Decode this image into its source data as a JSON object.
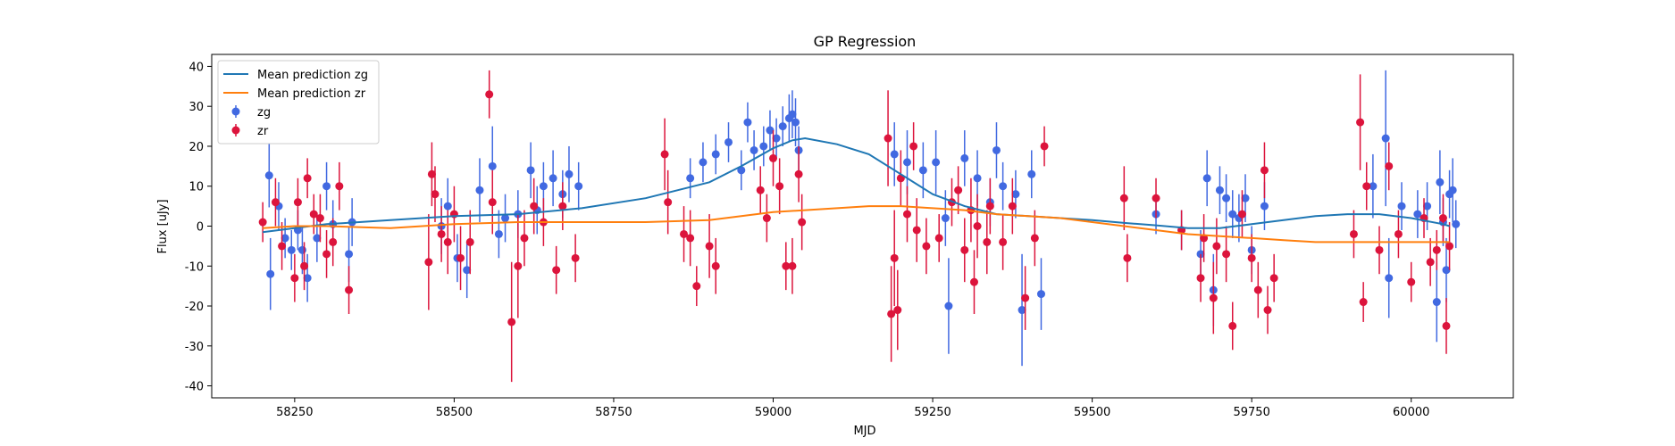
{
  "chart_data": {
    "type": "scatter",
    "title": "GP Regression",
    "xlabel": "MJD",
    "ylabel": "Flux [uJy]",
    "xlim": [
      58120,
      60160
    ],
    "ylim": [
      -43,
      43
    ],
    "xticks": [
      58250,
      58500,
      58750,
      59000,
      59250,
      59500,
      59750,
      60000
    ],
    "yticks": [
      -40,
      -30,
      -20,
      -10,
      0,
      10,
      20,
      30,
      40
    ],
    "grid": false,
    "legend_position": "top-left",
    "colors": {
      "zg_points": "#4169e1",
      "zr_points": "#dc143c",
      "zg_line": "#1f77b4",
      "zr_line": "#ff7f0e"
    },
    "legend": [
      {
        "label": "Mean prediction zg",
        "kind": "line",
        "color": "#1f77b4"
      },
      {
        "label": "Mean prediction zr",
        "kind": "line",
        "color": "#ff7f0e"
      },
      {
        "label": "zg",
        "kind": "errorbar",
        "color": "#4169e1"
      },
      {
        "label": "zr",
        "kind": "errorbar",
        "color": "#dc143c"
      }
    ],
    "lines": [
      {
        "name": "Mean prediction zg",
        "color": "#1f77b4",
        "x": [
          58200,
          58250,
          58300,
          58400,
          58500,
          58600,
          58700,
          58800,
          58900,
          58950,
          59000,
          59030,
          59050,
          59100,
          59150,
          59200,
          59250,
          59300,
          59350,
          59400,
          59450,
          59500,
          59550,
          59600,
          59650,
          59700,
          59750,
          59800,
          59850,
          59900,
          59950,
          60000,
          60050,
          60060
        ],
        "y": [
          -1.5,
          -0.5,
          0.5,
          1.5,
          2.5,
          3,
          4.5,
          7,
          11,
          15,
          19.5,
          21.5,
          22,
          20.5,
          18,
          13,
          8,
          5,
          3,
          2.5,
          2,
          1.5,
          0.8,
          0.2,
          -0.5,
          -0.5,
          0.5,
          1.5,
          2.5,
          3,
          3,
          2,
          0.5,
          0
        ]
      },
      {
        "name": "Mean prediction zr",
        "color": "#ff7f0e",
        "x": [
          58200,
          58250,
          58300,
          58400,
          58500,
          58600,
          58700,
          58800,
          58900,
          58950,
          59000,
          59050,
          59100,
          59150,
          59200,
          59250,
          59300,
          59350,
          59400,
          59450,
          59500,
          59550,
          59600,
          59650,
          59700,
          59750,
          59800,
          59850,
          59900,
          59950,
          60000,
          60050,
          60060
        ],
        "y": [
          -0.5,
          0,
          0,
          -0.5,
          0.5,
          1,
          1,
          1,
          1.5,
          2.5,
          3.5,
          4,
          4.5,
          5,
          5,
          4.5,
          4,
          3,
          2.5,
          2,
          1,
          0,
          -1,
          -2,
          -2.5,
          -3,
          -3.5,
          -4,
          -4,
          -4,
          -4,
          -4,
          -4
        ]
      }
    ],
    "series": [
      {
        "name": "zg",
        "color": "#4169e1",
        "points": [
          [
            58210,
            12.7,
            8
          ],
          [
            58212,
            -12,
            9
          ],
          [
            58225,
            5,
            6
          ],
          [
            58235,
            -3,
            5
          ],
          [
            58245,
            -6,
            5
          ],
          [
            58255,
            -1,
            5
          ],
          [
            58262,
            -6,
            6
          ],
          [
            58270,
            -13,
            6
          ],
          [
            58285,
            -3,
            6
          ],
          [
            58300,
            10,
            6
          ],
          [
            58310,
            0.5,
            6
          ],
          [
            58335,
            -7,
            7
          ],
          [
            58340,
            1,
            6
          ],
          [
            58480,
            0,
            7
          ],
          [
            58490,
            5,
            7
          ],
          [
            58505,
            -8,
            6
          ],
          [
            58520,
            -11,
            7
          ],
          [
            58540,
            9,
            8
          ],
          [
            58560,
            15,
            10
          ],
          [
            58570,
            -2,
            6
          ],
          [
            58580,
            2,
            6
          ],
          [
            58600,
            3,
            6
          ],
          [
            58620,
            14,
            7
          ],
          [
            58630,
            4,
            6
          ],
          [
            58640,
            10,
            6
          ],
          [
            58655,
            12,
            7
          ],
          [
            58670,
            8,
            6
          ],
          [
            58680,
            13,
            7
          ],
          [
            58695,
            10,
            6
          ],
          [
            58870,
            12,
            5
          ],
          [
            58890,
            16,
            5
          ],
          [
            58910,
            18,
            5
          ],
          [
            58930,
            21,
            5
          ],
          [
            58950,
            14,
            5
          ],
          [
            58960,
            26,
            5
          ],
          [
            58970,
            19,
            5
          ],
          [
            58985,
            20,
            5
          ],
          [
            58995,
            24,
            5
          ],
          [
            59005,
            22,
            5
          ],
          [
            59015,
            25,
            5
          ],
          [
            59025,
            27,
            6
          ],
          [
            59030,
            28,
            6
          ],
          [
            59035,
            26,
            6
          ],
          [
            59040,
            19,
            6
          ],
          [
            59190,
            18,
            8
          ],
          [
            59210,
            16,
            8
          ],
          [
            59235,
            14,
            7
          ],
          [
            59255,
            16,
            8
          ],
          [
            59270,
            2,
            7
          ],
          [
            59275,
            -20,
            12
          ],
          [
            59300,
            17,
            7
          ],
          [
            59320,
            12,
            7
          ],
          [
            59340,
            6,
            6
          ],
          [
            59350,
            19,
            7
          ],
          [
            59360,
            10,
            6
          ],
          [
            59380,
            8,
            6
          ],
          [
            59390,
            -21,
            14
          ],
          [
            59405,
            13,
            6
          ],
          [
            59420,
            -17,
            9
          ],
          [
            59600,
            3,
            5
          ],
          [
            59640,
            -1,
            5
          ],
          [
            59670,
            -7,
            6
          ],
          [
            59680,
            12,
            7
          ],
          [
            59690,
            -16,
            9
          ],
          [
            59700,
            9,
            6
          ],
          [
            59710,
            7,
            6
          ],
          [
            59720,
            3,
            6
          ],
          [
            59730,
            2,
            6
          ],
          [
            59740,
            7,
            6
          ],
          [
            59750,
            -6,
            6
          ],
          [
            59770,
            5,
            6
          ],
          [
            59940,
            10,
            8
          ],
          [
            59960,
            22,
            17
          ],
          [
            59965,
            -13,
            10
          ],
          [
            59985,
            5,
            6
          ],
          [
            60010,
            3,
            6
          ],
          [
            60025,
            5,
            6
          ],
          [
            60045,
            11,
            8
          ],
          [
            60050,
            1,
            6
          ],
          [
            60055,
            -11,
            8
          ],
          [
            60060,
            8,
            6
          ],
          [
            60065,
            9,
            8
          ],
          [
            60070,
            0.5,
            6
          ],
          [
            60040,
            -19,
            10
          ]
        ]
      },
      {
        "name": "zr",
        "color": "#dc143c",
        "points": [
          [
            58200,
            1,
            5
          ],
          [
            58220,
            6,
            6
          ],
          [
            58230,
            -5,
            6
          ],
          [
            58250,
            -13,
            6
          ],
          [
            58255,
            6,
            6
          ],
          [
            58265,
            -10,
            6
          ],
          [
            58270,
            12,
            5
          ],
          [
            58280,
            3,
            5
          ],
          [
            58290,
            2,
            6
          ],
          [
            58300,
            -7,
            6
          ],
          [
            58310,
            -4,
            6
          ],
          [
            58320,
            10,
            6
          ],
          [
            58335,
            -16,
            6
          ],
          [
            58460,
            -9,
            12
          ],
          [
            58465,
            13,
            8
          ],
          [
            58470,
            8,
            7
          ],
          [
            58480,
            -2,
            7
          ],
          [
            58490,
            -4,
            8
          ],
          [
            58500,
            3,
            7
          ],
          [
            58510,
            -8,
            8
          ],
          [
            58525,
            -4,
            8
          ],
          [
            58555,
            33,
            6
          ],
          [
            58560,
            6,
            8
          ],
          [
            58590,
            -24,
            15
          ],
          [
            58600,
            -10,
            13
          ],
          [
            58610,
            -3,
            7
          ],
          [
            58625,
            5,
            7
          ],
          [
            58640,
            1,
            6
          ],
          [
            58660,
            -11,
            6
          ],
          [
            58670,
            5,
            6
          ],
          [
            58690,
            -8,
            6
          ],
          [
            58830,
            18,
            9
          ],
          [
            58835,
            6,
            8
          ],
          [
            58860,
            -2,
            7
          ],
          [
            58870,
            -3,
            7
          ],
          [
            58880,
            -15,
            5
          ],
          [
            58900,
            -5,
            8
          ],
          [
            58910,
            -10,
            7
          ],
          [
            58980,
            9,
            6
          ],
          [
            58990,
            2,
            6
          ],
          [
            59000,
            17,
            7
          ],
          [
            59010,
            10,
            7
          ],
          [
            59020,
            -10,
            6
          ],
          [
            59030,
            -10,
            7
          ],
          [
            59040,
            13,
            7
          ],
          [
            59045,
            1,
            7
          ],
          [
            59180,
            22,
            12
          ],
          [
            59185,
            -22,
            12
          ],
          [
            59190,
            -8,
            12
          ],
          [
            59195,
            -21,
            10
          ],
          [
            59200,
            12,
            7
          ],
          [
            59210,
            3,
            7
          ],
          [
            59220,
            20,
            6
          ],
          [
            59225,
            -1,
            8
          ],
          [
            59240,
            -5,
            7
          ],
          [
            59260,
            -3,
            6
          ],
          [
            59280,
            6,
            6
          ],
          [
            59290,
            9,
            6
          ],
          [
            59300,
            -6,
            8
          ],
          [
            59310,
            4,
            8
          ],
          [
            59315,
            -14,
            8
          ],
          [
            59320,
            0,
            8
          ],
          [
            59335,
            -4,
            8
          ],
          [
            59340,
            5,
            7
          ],
          [
            59360,
            -4,
            7
          ],
          [
            59375,
            5,
            7
          ],
          [
            59395,
            -18,
            8
          ],
          [
            59410,
            -3,
            7
          ],
          [
            59425,
            20,
            5
          ],
          [
            59550,
            7,
            8
          ],
          [
            59555,
            -8,
            6
          ],
          [
            59600,
            7,
            5
          ],
          [
            59640,
            -1,
            5
          ],
          [
            59670,
            -13,
            6
          ],
          [
            59675,
            -3,
            6
          ],
          [
            59690,
            -18,
            9
          ],
          [
            59695,
            -5,
            7
          ],
          [
            59710,
            -7,
            7
          ],
          [
            59720,
            -25,
            6
          ],
          [
            59735,
            3,
            6
          ],
          [
            59750,
            -8,
            6
          ],
          [
            59760,
            -16,
            7
          ],
          [
            59770,
            14,
            7
          ],
          [
            59775,
            -21,
            6
          ],
          [
            59785,
            -13,
            6
          ],
          [
            59910,
            -2,
            6
          ],
          [
            59920,
            26,
            12
          ],
          [
            59925,
            -19,
            5
          ],
          [
            59930,
            10,
            6
          ],
          [
            59950,
            -6,
            6
          ],
          [
            59965,
            15,
            6
          ],
          [
            59980,
            -2,
            6
          ],
          [
            60000,
            -14,
            5
          ],
          [
            60020,
            2,
            5
          ],
          [
            60030,
            -9,
            6
          ],
          [
            60040,
            -6,
            5
          ],
          [
            60050,
            2,
            6
          ],
          [
            60055,
            -25,
            7
          ],
          [
            60060,
            -5,
            6
          ]
        ]
      }
    ]
  }
}
